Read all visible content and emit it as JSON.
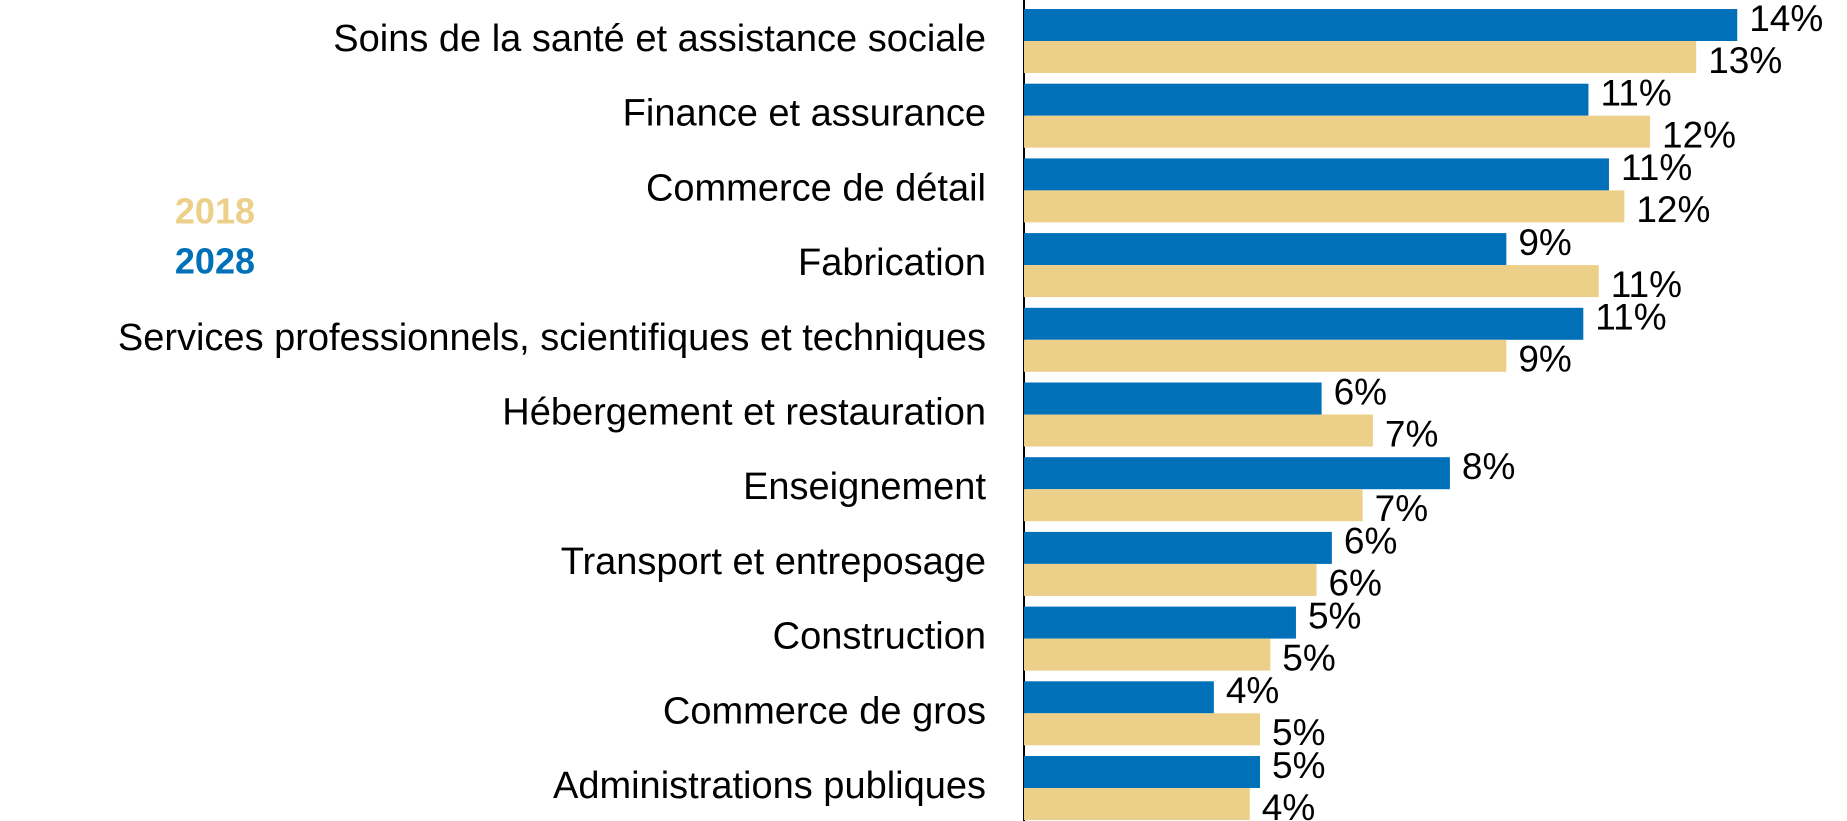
{
  "chart_data": {
    "type": "barh",
    "categories": [
      "Soins de la santé et assistance sociale",
      "Finance et assurance",
      "Commerce de détail",
      "Fabrication",
      "Services professionnels, scientifiques et techniques",
      "Hébergement et restauration",
      "Enseignement",
      "Transport et entreposage",
      "Construction",
      "Commerce de gros",
      "Administrations publiques"
    ],
    "series": [
      {
        "name": "2018",
        "color": "#ecd089",
        "values": [
          13.1,
          12.2,
          11.7,
          11.2,
          9.4,
          6.8,
          6.6,
          5.7,
          4.8,
          4.6,
          4.4
        ],
        "value_labels": [
          "13%",
          "12%",
          "12%",
          "11%",
          "9%",
          "7%",
          "7%",
          "6%",
          "5%",
          "5%",
          "4%"
        ]
      },
      {
        "name": "2028",
        "color": "#0070b8",
        "values": [
          13.9,
          11.0,
          11.4,
          9.4,
          10.9,
          5.8,
          8.3,
          6.0,
          5.3,
          3.7,
          4.6
        ],
        "value_labels": [
          "14%",
          "11%",
          "11%",
          "9%",
          "11%",
          "6%",
          "8%",
          "6%",
          "5%",
          "4%",
          "5%"
        ]
      }
    ],
    "xlim": [
      0,
      16
    ]
  }
}
